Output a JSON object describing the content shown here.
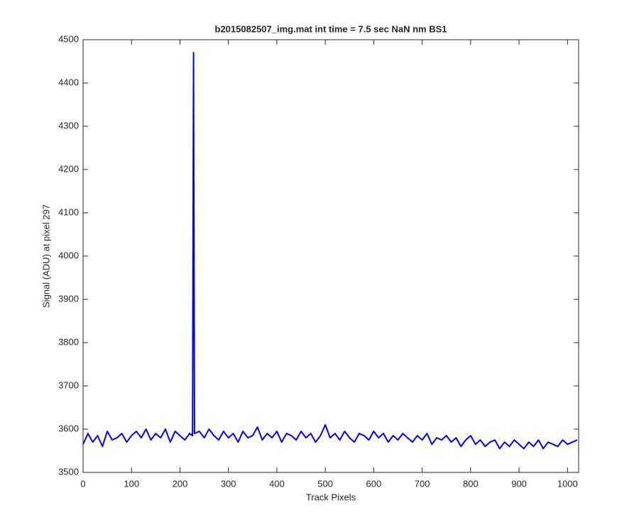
{
  "chart_data": {
    "type": "line",
    "title": "b2015082507_img.mat int time = 7.5 sec  NaN nm BS1",
    "xlabel": "Track Pixels",
    "ylabel": "Signal (ADU) at pixel 297",
    "color": "#0000ff",
    "x": [
      0,
      10,
      20,
      30,
      40,
      50,
      60,
      70,
      80,
      90,
      100,
      110,
      120,
      130,
      140,
      150,
      160,
      170,
      180,
      190,
      200,
      210,
      220,
      226,
      228,
      230,
      240,
      250,
      260,
      270,
      280,
      290,
      300,
      310,
      320,
      330,
      340,
      350,
      360,
      370,
      380,
      390,
      400,
      410,
      420,
      430,
      440,
      450,
      460,
      470,
      480,
      490,
      500,
      510,
      520,
      530,
      540,
      550,
      560,
      570,
      580,
      590,
      600,
      610,
      620,
      630,
      640,
      650,
      660,
      670,
      680,
      690,
      700,
      710,
      720,
      730,
      740,
      750,
      760,
      770,
      780,
      790,
      800,
      810,
      820,
      830,
      840,
      850,
      860,
      870,
      880,
      890,
      900,
      910,
      920,
      930,
      940,
      950,
      960,
      970,
      980,
      990,
      1000,
      1010,
      1020
    ],
    "values": [
      3565,
      3590,
      3570,
      3585,
      3560,
      3595,
      3575,
      3580,
      3590,
      3570,
      3585,
      3595,
      3580,
      3600,
      3575,
      3590,
      3580,
      3600,
      3570,
      3595,
      3585,
      3575,
      3590,
      3585,
      4470,
      3590,
      3595,
      3580,
      3600,
      3585,
      3575,
      3595,
      3580,
      3590,
      3570,
      3595,
      3580,
      3585,
      3605,
      3575,
      3590,
      3580,
      3595,
      3570,
      3590,
      3585,
      3575,
      3595,
      3580,
      3590,
      3570,
      3585,
      3610,
      3580,
      3590,
      3575,
      3595,
      3580,
      3570,
      3590,
      3585,
      3575,
      3595,
      3580,
      3590,
      3570,
      3585,
      3575,
      3590,
      3580,
      3570,
      3585,
      3575,
      3590,
      3565,
      3580,
      3575,
      3585,
      3570,
      3580,
      3560,
      3575,
      3585,
      3565,
      3575,
      3560,
      3570,
      3575,
      3555,
      3570,
      3560,
      3575,
      3565,
      3555,
      3570,
      3560,
      3575,
      3555,
      3570,
      3565,
      3560,
      3575,
      3565,
      3570,
      3575
    ],
    "xlim": [
      0,
      1023
    ],
    "ylim": [
      3500,
      4500
    ],
    "xticks": [
      0,
      100,
      200,
      300,
      400,
      500,
      600,
      700,
      800,
      900,
      1000
    ],
    "yticks": [
      3500,
      3600,
      3700,
      3800,
      3900,
      4000,
      4100,
      4200,
      4300,
      4400,
      4500
    ],
    "grid": false
  }
}
